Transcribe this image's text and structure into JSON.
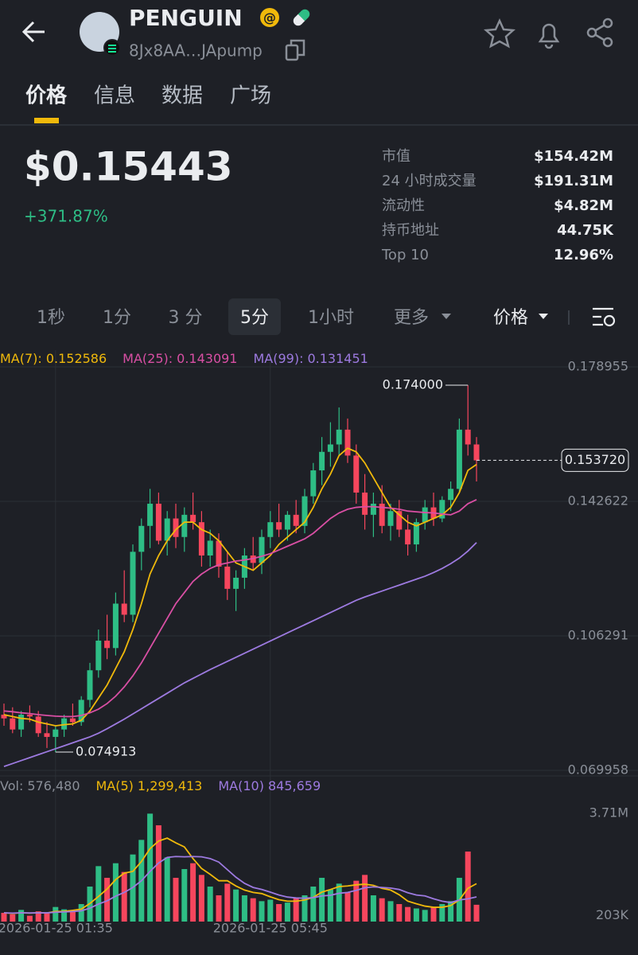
{
  "header": {
    "title": "PENGUIN",
    "address": "8Jx8AA…JApump"
  },
  "tabs": [
    "价格",
    "信息",
    "数据",
    "广场"
  ],
  "price": {
    "value": "$0.15443",
    "change": "+371.87%"
  },
  "stats": [
    {
      "label": "市值",
      "value": "$154.42M"
    },
    {
      "label": "24 小时成交量",
      "value": "$191.31M"
    },
    {
      "label": "流动性",
      "value": "$4.82M"
    },
    {
      "label": "持币地址",
      "value": "44.75K"
    },
    {
      "label": "Top 10",
      "value": "12.96%"
    }
  ],
  "timeframes": [
    "1秒",
    "1分",
    "3 分",
    "5分",
    "1小时",
    "更多"
  ],
  "chart_selector": "价格",
  "chart_data": {
    "type": "candlestick",
    "up_color": "#2ebd85",
    "down_color": "#f6465d",
    "ylim": [
      0.069958,
      0.178955
    ],
    "yticks": [
      0.178955,
      0.142622,
      0.106291,
      0.069958
    ],
    "categories": [
      null,
      null,
      null,
      null,
      null,
      null,
      "2026-01-25 01:35",
      null,
      null,
      null,
      null,
      null,
      null,
      null,
      null,
      null,
      null,
      null,
      null,
      null,
      null,
      null,
      null,
      null,
      null,
      null,
      null,
      null,
      null,
      null,
      null,
      "2026-01-25 05:45",
      null,
      null,
      null,
      null,
      null,
      null,
      null,
      null,
      null,
      null,
      null,
      null,
      null,
      null,
      null,
      null,
      null,
      null,
      null,
      null,
      null,
      null,
      null,
      null
    ],
    "ohlc": [
      [
        0.085,
        0.088,
        0.082,
        0.084
      ],
      [
        0.084,
        0.087,
        0.08,
        0.081
      ],
      [
        0.081,
        0.086,
        0.079,
        0.085
      ],
      [
        0.085,
        0.0875,
        0.083,
        0.0845
      ],
      [
        0.0845,
        0.086,
        0.079,
        0.08
      ],
      [
        0.08,
        0.083,
        0.076,
        0.079
      ],
      [
        0.079,
        0.082,
        0.074913,
        0.081
      ],
      [
        0.081,
        0.085,
        0.079,
        0.084
      ],
      [
        0.084,
        0.088,
        0.082,
        0.083
      ],
      [
        0.083,
        0.09,
        0.082,
        0.089
      ],
      [
        0.089,
        0.099,
        0.087,
        0.097
      ],
      [
        0.097,
        0.108,
        0.095,
        0.105
      ],
      [
        0.105,
        0.112,
        0.1,
        0.103
      ],
      [
        0.103,
        0.118,
        0.101,
        0.115
      ],
      [
        0.115,
        0.124,
        0.11,
        0.112
      ],
      [
        0.112,
        0.131,
        0.11,
        0.129
      ],
      [
        0.129,
        0.138,
        0.124,
        0.136
      ],
      [
        0.136,
        0.146,
        0.13,
        0.142
      ],
      [
        0.142,
        0.145,
        0.131,
        0.132
      ],
      [
        0.132,
        0.14,
        0.128,
        0.138
      ],
      [
        0.138,
        0.142,
        0.13,
        0.133
      ],
      [
        0.133,
        0.141,
        0.129,
        0.139
      ],
      [
        0.139,
        0.145,
        0.135,
        0.137
      ],
      [
        0.137,
        0.14,
        0.125,
        0.128
      ],
      [
        0.128,
        0.135,
        0.125,
        0.132
      ],
      [
        0.132,
        0.134,
        0.122,
        0.125
      ],
      [
        0.125,
        0.129,
        0.116,
        0.119
      ],
      [
        0.119,
        0.124,
        0.113,
        0.122
      ],
      [
        0.122,
        0.13,
        0.119,
        0.128
      ],
      [
        0.128,
        0.133,
        0.124,
        0.126
      ],
      [
        0.126,
        0.135,
        0.123,
        0.133
      ],
      [
        0.133,
        0.14,
        0.13,
        0.137
      ],
      [
        0.137,
        0.142,
        0.133,
        0.135
      ],
      [
        0.135,
        0.14,
        0.132,
        0.139
      ],
      [
        0.139,
        0.143,
        0.134,
        0.136
      ],
      [
        0.136,
        0.146,
        0.134,
        0.144
      ],
      [
        0.144,
        0.153,
        0.142,
        0.151
      ],
      [
        0.151,
        0.16,
        0.147,
        0.156
      ],
      [
        0.156,
        0.164,
        0.152,
        0.158
      ],
      [
        0.158,
        0.168,
        0.155,
        0.162
      ],
      [
        0.162,
        0.165,
        0.153,
        0.155
      ],
      [
        0.155,
        0.158,
        0.142,
        0.145
      ],
      [
        0.145,
        0.15,
        0.135,
        0.139
      ],
      [
        0.139,
        0.145,
        0.133,
        0.142
      ],
      [
        0.142,
        0.147,
        0.134,
        0.136
      ],
      [
        0.136,
        0.142,
        0.132,
        0.14
      ],
      [
        0.14,
        0.143,
        0.133,
        0.135
      ],
      [
        0.135,
        0.139,
        0.128,
        0.131
      ],
      [
        0.131,
        0.138,
        0.129,
        0.137
      ],
      [
        0.137,
        0.143,
        0.135,
        0.141
      ],
      [
        0.141,
        0.145,
        0.136,
        0.138
      ],
      [
        0.138,
        0.144,
        0.137,
        0.143
      ],
      [
        0.143,
        0.148,
        0.14,
        0.146
      ],
      [
        0.146,
        0.165,
        0.145,
        0.162
      ],
      [
        0.162,
        0.174,
        0.155,
        0.158
      ],
      [
        0.158,
        0.16,
        0.148,
        0.1537
      ]
    ],
    "series": [
      {
        "name": "MA(7):",
        "color": "#f0b90b",
        "current": 0.152586,
        "values": [
          0.085,
          0.0845,
          0.084,
          0.0838,
          0.083,
          0.0825,
          0.082,
          0.0823,
          0.0825,
          0.0835,
          0.086,
          0.0895,
          0.093,
          0.0975,
          0.102,
          0.108,
          0.115,
          0.123,
          0.128,
          0.132,
          0.135,
          0.137,
          0.137,
          0.135,
          0.134,
          0.132,
          0.129,
          0.126,
          0.125,
          0.124,
          0.126,
          0.128,
          0.131,
          0.133,
          0.135,
          0.137,
          0.141,
          0.146,
          0.15,
          0.155,
          0.157,
          0.156,
          0.153,
          0.149,
          0.145,
          0.141,
          0.139,
          0.137,
          0.136,
          0.137,
          0.138,
          0.139,
          0.141,
          0.145,
          0.151,
          0.1526
        ]
      },
      {
        "name": "MA(25):",
        "color": "#d94fa4",
        "current": 0.143091,
        "values": [
          0.086,
          0.0858,
          0.0855,
          0.0853,
          0.085,
          0.0848,
          0.0846,
          0.0845,
          0.0845,
          0.0848,
          0.0855,
          0.0865,
          0.088,
          0.09,
          0.0925,
          0.0955,
          0.099,
          0.103,
          0.107,
          0.111,
          0.115,
          0.118,
          0.121,
          0.123,
          0.1245,
          0.1255,
          0.126,
          0.1265,
          0.1268,
          0.1272,
          0.1278,
          0.1285,
          0.1295,
          0.1305,
          0.1315,
          0.1325,
          0.134,
          0.136,
          0.138,
          0.1395,
          0.1405,
          0.141,
          0.1412,
          0.1412,
          0.141,
          0.1408,
          0.1405,
          0.14,
          0.1398,
          0.1396,
          0.1395,
          0.1392,
          0.139,
          0.14,
          0.142,
          0.1431
        ]
      },
      {
        "name": "MA(99):",
        "color": "#9d7ae0",
        "current": 0.131451,
        "values": [
          0.071,
          0.0718,
          0.0726,
          0.0734,
          0.0742,
          0.075,
          0.0758,
          0.0766,
          0.0774,
          0.0782,
          0.079,
          0.08,
          0.0812,
          0.0825,
          0.0838,
          0.0852,
          0.0866,
          0.088,
          0.0894,
          0.0908,
          0.0922,
          0.0936,
          0.0948,
          0.096,
          0.0972,
          0.0983,
          0.0994,
          0.1005,
          0.1016,
          0.1027,
          0.1038,
          0.1049,
          0.106,
          0.1071,
          0.1082,
          0.1093,
          0.1104,
          0.1115,
          0.1126,
          0.1137,
          0.1148,
          0.1159,
          0.1168,
          0.1176,
          0.1184,
          0.1192,
          0.12,
          0.1208,
          0.1216,
          0.1224,
          0.1234,
          0.1245,
          0.1258,
          0.1273,
          0.1292,
          0.1315
        ]
      }
    ],
    "high_marker": {
      "value": 0.174,
      "label": "0.174000"
    },
    "low_marker": 0.074913,
    "current_price": {
      "value": 0.15372,
      "label": "0.153720"
    },
    "volume": {
      "name": "Vol:",
      "current": {
        "value": 576480,
        "label": "576,480"
      },
      "values": [
        300000,
        250000,
        400000,
        200000,
        350000,
        280000,
        500000,
        420000,
        380000,
        600000,
        1200000,
        1900000,
        1500000,
        2000000,
        1700000,
        2300000,
        2800000,
        3700000,
        3300000,
        2200000,
        1500000,
        1800000,
        2000000,
        1600000,
        1200000,
        900000,
        1300000,
        1100000,
        900000,
        800000,
        700000,
        750000,
        600000,
        650000,
        800000,
        900000,
        1200000,
        1500000,
        1100000,
        1300000,
        1000000,
        1400000,
        1600000,
        900000,
        800000,
        700000,
        600000,
        500000,
        450000,
        400000,
        500000,
        600000,
        700000,
        1500000,
        2400000,
        576480
      ]
    },
    "vol_ylim": [
      0,
      3710000
    ],
    "vol_ticks": [
      {
        "value": 3710000,
        "label": "3.71M"
      },
      {
        "value": 203000,
        "label": "203K"
      }
    ],
    "vol_series": [
      {
        "name": "MA(5)",
        "color": "#f0b90b",
        "current": {
          "value": 1299413,
          "label": "1,299,413"
        },
        "values": [
          300000,
          280000,
          300000,
          290000,
          300000,
          296000,
          346000,
          350000,
          386000,
          426000,
          620000,
          860000,
          1116000,
          1440000,
          1660000,
          1720000,
          2060000,
          2500000,
          2760000,
          2860000,
          2700000,
          2560000,
          2160000,
          1820000,
          1620000,
          1400000,
          1400000,
          1220000,
          1080000,
          1000000,
          960000,
          850000,
          750000,
          700000,
          700000,
          740000,
          830000,
          1010000,
          1100000,
          1200000,
          1220000,
          1260000,
          1280000,
          1240000,
          1140000,
          1080000,
          920000,
          700000,
          610000,
          530000,
          490000,
          490000,
          550000,
          740000,
          1140000,
          1299413
        ]
      },
      {
        "name": "MA(10)",
        "color": "#9d7ae0",
        "current": {
          "value": 845659,
          "label": "845,659"
        },
        "values": [
          300000,
          290000,
          300000,
          295000,
          300000,
          298000,
          320000,
          330000,
          345000,
          370000,
          460000,
          600000,
          710000,
          870000,
          1000000,
          1170000,
          1400000,
          1720000,
          2010000,
          2200000,
          2230000,
          2220000,
          2230000,
          2220000,
          2160000,
          2040000,
          1780000,
          1520000,
          1310000,
          1170000,
          1100000,
          1010000,
          910000,
          840000,
          810000,
          800000,
          820000,
          880000,
          900000,
          970000,
          1000000,
          1070000,
          1160000,
          1190000,
          1170000,
          1150000,
          1100000,
          990000,
          910000,
          880000,
          780000,
          700000,
          650000,
          740000,
          780000,
          845659
        ]
      }
    ]
  }
}
